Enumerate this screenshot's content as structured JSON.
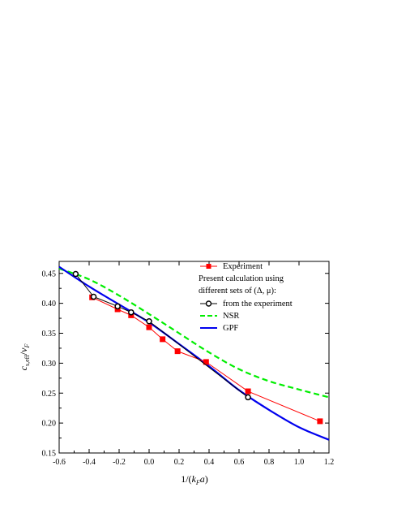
{
  "chart_data": {
    "type": "line",
    "xlabel": "1/(k_F a)",
    "ylabel": "c_{s,eff}/v_F",
    "xlim": [
      -0.6,
      1.2
    ],
    "ylim": [
      0.15,
      0.47
    ],
    "xticks": [
      "-0.6",
      "-0.4",
      "-0.2",
      "0.0",
      "0.2",
      "0.4",
      "0.6",
      "0.8",
      "1.0",
      "1.2"
    ],
    "yticks": [
      "0.15",
      "0.20",
      "0.25",
      "0.30",
      "0.35",
      "0.40",
      "0.45"
    ],
    "legend_position": "top-right",
    "legend": {
      "experiment": "Experiment",
      "caption_line1": "Present calculation using",
      "caption_line2": "different sets of (Δ, μ):",
      "from_experiment": "from the experiment",
      "nsr": "NSR",
      "gpf": "GPF"
    },
    "series": [
      {
        "name": "Experiment",
        "color": "#ff0000",
        "marker": "square",
        "x": [
          -0.38,
          -0.21,
          -0.12,
          0.0,
          0.09,
          0.19,
          0.38,
          0.66,
          1.14
        ],
        "y": [
          0.41,
          0.39,
          0.38,
          0.36,
          0.34,
          0.32,
          0.302,
          0.253,
          0.203
        ]
      },
      {
        "name": "from the experiment",
        "color": "#000000",
        "marker": "open-circle",
        "x": [
          -0.49,
          -0.37,
          -0.21,
          -0.12,
          0.0,
          0.66
        ],
        "y": [
          0.449,
          0.411,
          0.395,
          0.385,
          0.37,
          0.243
        ]
      },
      {
        "name": "NSR",
        "color": "#00ee00",
        "style": "dashed",
        "x": [
          -0.6,
          -0.4,
          -0.2,
          0.0,
          0.2,
          0.4,
          0.6,
          0.8,
          1.0,
          1.2
        ],
        "y": [
          0.458,
          0.44,
          0.413,
          0.382,
          0.35,
          0.318,
          0.29,
          0.27,
          0.256,
          0.243
        ]
      },
      {
        "name": "GPF",
        "color": "#0000ee",
        "style": "solid",
        "x": [
          -0.6,
          -0.4,
          -0.2,
          0.0,
          0.2,
          0.4,
          0.6,
          0.8,
          1.0,
          1.2
        ],
        "y": [
          0.461,
          0.428,
          0.398,
          0.368,
          0.332,
          0.295,
          0.255,
          0.222,
          0.193,
          0.172
        ]
      }
    ]
  }
}
